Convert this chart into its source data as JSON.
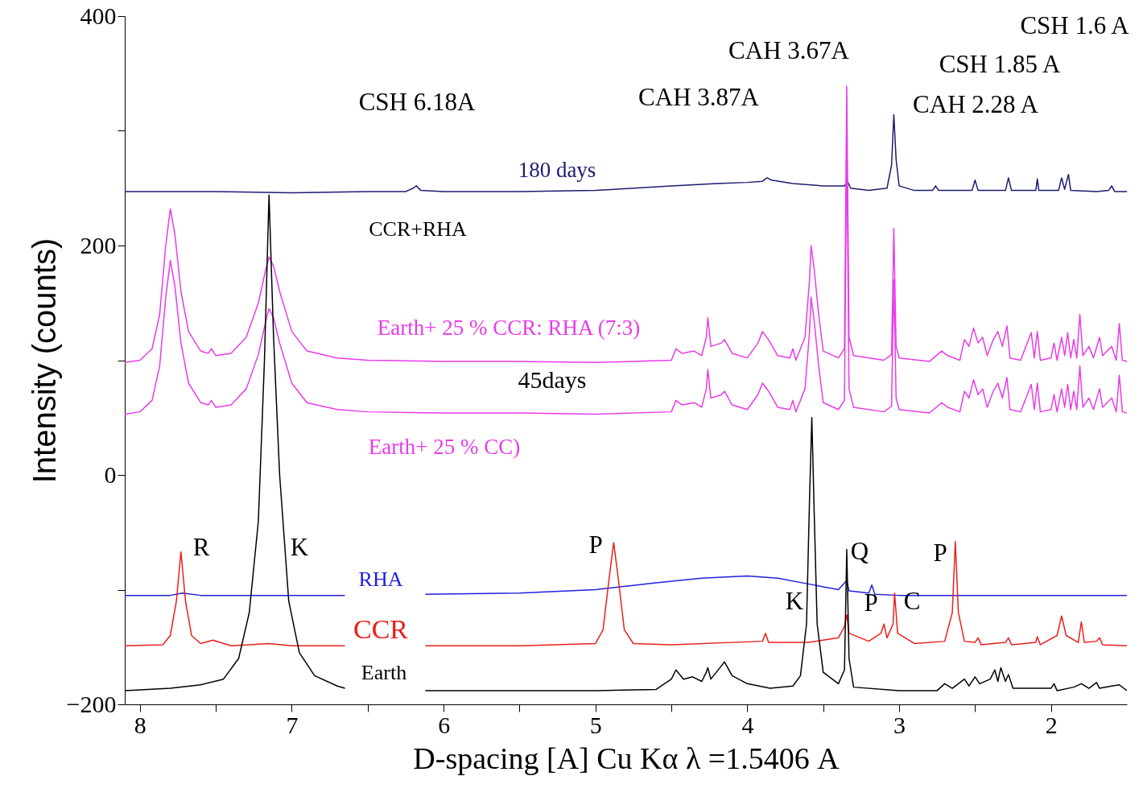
{
  "chart_data": {
    "type": "line",
    "xlabel": "D-spacing [A] Cu Kα λ =1.5406 A",
    "ylabel": "Intensity (counts)",
    "xlim": [
      8.1,
      1.5
    ],
    "ylim": [
      -200,
      400
    ],
    "xticks": [
      8,
      {
        "value": 7.5,
        "label": null
      },
      7,
      {
        "value": 6.5,
        "label": null
      },
      6,
      {
        "value": 5.5,
        "label": null
      },
      5,
      {
        "value": 4.5,
        "label": null
      },
      4,
      {
        "value": 3.5,
        "label": null
      },
      3,
      {
        "value": 2.5,
        "label": null
      },
      2
    ],
    "yticks": [
      -200,
      {
        "value": -100,
        "label": null
      },
      0,
      {
        "value": 100,
        "label": null
      },
      200,
      {
        "value": 300,
        "label": null
      },
      400
    ],
    "series": [
      {
        "name": "180 days",
        "color": "#1c1c72",
        "x": [
          8.1,
          7.5,
          7.0,
          6.5,
          6.25,
          6.2,
          6.18,
          6.15,
          6.0,
          5.5,
          5.0,
          4.5,
          4.2,
          4.0,
          3.9,
          3.87,
          3.84,
          3.7,
          3.5,
          3.36,
          3.34,
          3.32,
          3.2,
          3.08,
          3.05,
          3.035,
          3.02,
          3.0,
          2.9,
          2.78,
          2.76,
          2.74,
          2.52,
          2.5,
          2.48,
          2.3,
          2.28,
          2.26,
          2.1,
          2.09,
          2.08,
          1.95,
          1.93,
          1.91,
          1.885,
          1.87,
          1.7,
          1.62,
          1.6,
          1.58,
          1.5
        ],
        "values": [
          247,
          247,
          246,
          247,
          247,
          250,
          252,
          248,
          247,
          247,
          248,
          252,
          254,
          255,
          256,
          259,
          257,
          254,
          252,
          252,
          256,
          250,
          248,
          250,
          270,
          314,
          275,
          252,
          248,
          248,
          252,
          248,
          248,
          257,
          248,
          248,
          259,
          248,
          248,
          258,
          248,
          248,
          259,
          249,
          262,
          248,
          247,
          248,
          252,
          247,
          247
        ]
      },
      {
        "name": "Earth+ 25 % CCR: RHA (7:3)",
        "color": "#e83ce8",
        "x": [
          8.1,
          8.0,
          7.92,
          7.87,
          7.83,
          7.8,
          7.77,
          7.73,
          7.68,
          7.6,
          7.55,
          7.53,
          7.5,
          7.4,
          7.3,
          7.22,
          7.17,
          7.15,
          7.12,
          7.08,
          7.0,
          6.9,
          6.7,
          6.5,
          6.0,
          5.5,
          5.0,
          4.5,
          4.47,
          4.43,
          4.35,
          4.3,
          4.27,
          4.26,
          4.24,
          4.17,
          4.15,
          4.1,
          4.0,
          3.93,
          3.9,
          3.86,
          3.8,
          3.72,
          3.7,
          3.68,
          3.62,
          3.59,
          3.58,
          3.56,
          3.53,
          3.5,
          3.4,
          3.36,
          3.345,
          3.33,
          3.3,
          3.1,
          3.05,
          3.035,
          3.02,
          3.0,
          2.8,
          2.72,
          2.68,
          2.6,
          2.57,
          2.54,
          2.51,
          2.48,
          2.45,
          2.42,
          2.38,
          2.35,
          2.32,
          2.29,
          2.27,
          2.2,
          2.13,
          2.11,
          2.09,
          2.07,
          2.0,
          1.98,
          1.96,
          1.93,
          1.91,
          1.89,
          1.87,
          1.85,
          1.83,
          1.81,
          1.79,
          1.75,
          1.72,
          1.68,
          1.66,
          1.6,
          1.57,
          1.55,
          1.53,
          1.5
        ],
        "values": [
          98,
          100,
          110,
          140,
          200,
          232,
          210,
          160,
          125,
          108,
          106,
          110,
          104,
          106,
          120,
          150,
          180,
          190,
          182,
          160,
          125,
          108,
          102,
          100,
          99,
          99,
          98,
          100,
          110,
          106,
          108,
          104,
          120,
          137,
          112,
          115,
          118,
          106,
          102,
          115,
          125,
          118,
          104,
          102,
          110,
          100,
          120,
          170,
          200,
          180,
          140,
          108,
          102,
          110,
          339,
          120,
          104,
          100,
          105,
          215,
          112,
          102,
          99,
          108,
          104,
          100,
          118,
          112,
          128,
          115,
          120,
          104,
          118,
          125,
          112,
          130,
          102,
          100,
          124,
          102,
          125,
          100,
          102,
          115,
          100,
          120,
          104,
          124,
          102,
          118,
          102,
          140,
          104,
          112,
          102,
          120,
          104,
          112,
          100,
          132,
          100,
          99
        ]
      },
      {
        "name": "Earth+ 25 % CC)",
        "color": "#e83ce8",
        "x": [
          8.1,
          8.0,
          7.92,
          7.87,
          7.83,
          7.8,
          7.77,
          7.73,
          7.68,
          7.6,
          7.55,
          7.53,
          7.5,
          7.4,
          7.3,
          7.22,
          7.17,
          7.15,
          7.12,
          7.08,
          7.0,
          6.9,
          6.7,
          6.5,
          6.0,
          5.5,
          5.0,
          4.5,
          4.47,
          4.43,
          4.35,
          4.3,
          4.27,
          4.26,
          4.24,
          4.17,
          4.15,
          4.1,
          4.0,
          3.93,
          3.9,
          3.86,
          3.8,
          3.72,
          3.7,
          3.68,
          3.62,
          3.59,
          3.58,
          3.56,
          3.53,
          3.5,
          3.4,
          3.36,
          3.345,
          3.33,
          3.3,
          3.1,
          3.05,
          3.035,
          3.02,
          3.0,
          2.8,
          2.72,
          2.68,
          2.6,
          2.57,
          2.54,
          2.51,
          2.48,
          2.45,
          2.42,
          2.38,
          2.35,
          2.32,
          2.29,
          2.27,
          2.2,
          2.13,
          2.11,
          2.09,
          2.07,
          2.0,
          1.98,
          1.96,
          1.93,
          1.91,
          1.89,
          1.87,
          1.85,
          1.83,
          1.81,
          1.79,
          1.75,
          1.72,
          1.68,
          1.66,
          1.6,
          1.57,
          1.55,
          1.53,
          1.5
        ],
        "values": [
          53,
          55,
          65,
          95,
          155,
          187,
          165,
          115,
          80,
          63,
          61,
          65,
          59,
          61,
          75,
          105,
          135,
          145,
          137,
          115,
          80,
          63,
          57,
          55,
          54,
          54,
          53,
          55,
          65,
          61,
          63,
          59,
          75,
          92,
          67,
          70,
          73,
          61,
          57,
          70,
          80,
          73,
          59,
          57,
          65,
          55,
          75,
          125,
          155,
          135,
          95,
          63,
          57,
          65,
          294,
          75,
          59,
          55,
          60,
          170,
          67,
          57,
          54,
          63,
          59,
          55,
          73,
          67,
          83,
          70,
          75,
          59,
          73,
          80,
          67,
          85,
          57,
          55,
          79,
          57,
          80,
          55,
          57,
          70,
          55,
          75,
          59,
          79,
          57,
          73,
          57,
          95,
          59,
          67,
          57,
          75,
          59,
          67,
          55,
          87,
          55,
          54
        ]
      },
      {
        "name": "RHA",
        "color": "#2020e0",
        "x": [
          8.1,
          7.8,
          7.72,
          7.6,
          7.0,
          6.65,
          6.4,
          6.12,
          5.5,
          5.0,
          4.6,
          4.3,
          4.0,
          3.8,
          3.6,
          3.4,
          3.345,
          3.33,
          3.2,
          3.18,
          3.16,
          3.0,
          2.5,
          2.0,
          1.5
        ],
        "values": [
          -105,
          -105,
          -103,
          -105,
          -105,
          -105,
          null,
          -104,
          -103,
          -100,
          -94,
          -90,
          -88,
          -90,
          -95,
          -100,
          -92,
          -101,
          -103,
          -96,
          -104,
          -105,
          -105,
          -105,
          -105
        ]
      },
      {
        "name": "CCR",
        "color": "#e8201c",
        "x": [
          8.1,
          7.85,
          7.8,
          7.76,
          7.73,
          7.7,
          7.66,
          7.6,
          7.52,
          7.4,
          7.15,
          7.0,
          6.65,
          6.4,
          6.12,
          5.5,
          5.0,
          4.95,
          4.91,
          4.88,
          4.85,
          4.81,
          4.75,
          4.5,
          3.9,
          3.88,
          3.86,
          3.6,
          3.4,
          3.36,
          3.345,
          3.33,
          3.2,
          3.12,
          3.1,
          3.08,
          3.04,
          3.03,
          3.01,
          2.9,
          2.7,
          2.65,
          2.63,
          2.61,
          2.57,
          2.5,
          2.48,
          2.46,
          2.3,
          2.28,
          2.26,
          2.1,
          2.09,
          2.07,
          1.96,
          1.93,
          1.9,
          1.82,
          1.8,
          1.78,
          1.7,
          1.68,
          1.66,
          1.5
        ],
        "values": [
          -149,
          -148,
          -140,
          -110,
          -67,
          -110,
          -140,
          -147,
          -144,
          -149,
          -147,
          -149,
          -149,
          null,
          -149,
          -149,
          -147,
          -135,
          -90,
          -59,
          -90,
          -135,
          -147,
          -148,
          -145,
          -138,
          -146,
          -146,
          -142,
          -132,
          -122,
          -138,
          -145,
          -138,
          -130,
          -142,
          -130,
          -103,
          -138,
          -147,
          -145,
          -120,
          -58,
          -120,
          -145,
          -146,
          -142,
          -148,
          -146,
          -142,
          -148,
          -146,
          -141,
          -148,
          -140,
          -123,
          -140,
          -146,
          -128,
          -146,
          -145,
          -142,
          -148,
          -149
        ]
      },
      {
        "name": "Earth",
        "color": "#000000",
        "x": [
          8.1,
          7.8,
          7.6,
          7.45,
          7.35,
          7.28,
          7.22,
          7.18,
          7.15,
          7.12,
          7.08,
          7.02,
          6.95,
          6.85,
          6.7,
          6.65,
          6.4,
          6.12,
          5.5,
          5.0,
          4.6,
          4.5,
          4.47,
          4.42,
          4.36,
          4.3,
          4.27,
          4.26,
          4.24,
          4.18,
          4.15,
          4.1,
          4.0,
          3.85,
          3.7,
          3.65,
          3.61,
          3.59,
          3.575,
          3.56,
          3.54,
          3.5,
          3.4,
          3.36,
          3.345,
          3.33,
          3.3,
          3.0,
          2.75,
          2.7,
          2.65,
          2.57,
          2.54,
          2.5,
          2.47,
          2.4,
          2.37,
          2.35,
          2.33,
          2.3,
          2.28,
          2.25,
          2.0,
          1.98,
          1.96,
          1.85,
          1.8,
          1.75,
          1.7,
          1.68,
          1.6,
          1.55,
          1.5
        ],
        "values": [
          -188,
          -186,
          -183,
          -178,
          -160,
          -120,
          -40,
          100,
          244,
          120,
          0,
          -110,
          -155,
          -175,
          -184,
          -186,
          null,
          -188,
          -188,
          -188,
          -187,
          -178,
          -170,
          -178,
          -176,
          -180,
          -172,
          -168,
          -178,
          -168,
          -163,
          -175,
          -182,
          -186,
          -184,
          -175,
          -130,
          -20,
          50,
          -30,
          -130,
          -172,
          -182,
          -170,
          -65,
          -160,
          -185,
          -188,
          -188,
          -182,
          -186,
          -178,
          -184,
          -176,
          -182,
          -178,
          -170,
          -180,
          -168,
          -180,
          -174,
          -186,
          -186,
          -182,
          -188,
          -185,
          -182,
          -186,
          -181,
          -186,
          -184,
          -183,
          -188
        ]
      }
    ],
    "annotations": [
      "CSH 6.18A",
      "CAH 3.87A",
      "CAH 3.67A",
      "CSH 1.6 A",
      "CSH 1.85 A",
      "CAH 2.28 A",
      "CCR+RHA",
      "45days",
      "R",
      "K",
      "P",
      "Q",
      "K",
      "P",
      "C",
      "P"
    ]
  }
}
